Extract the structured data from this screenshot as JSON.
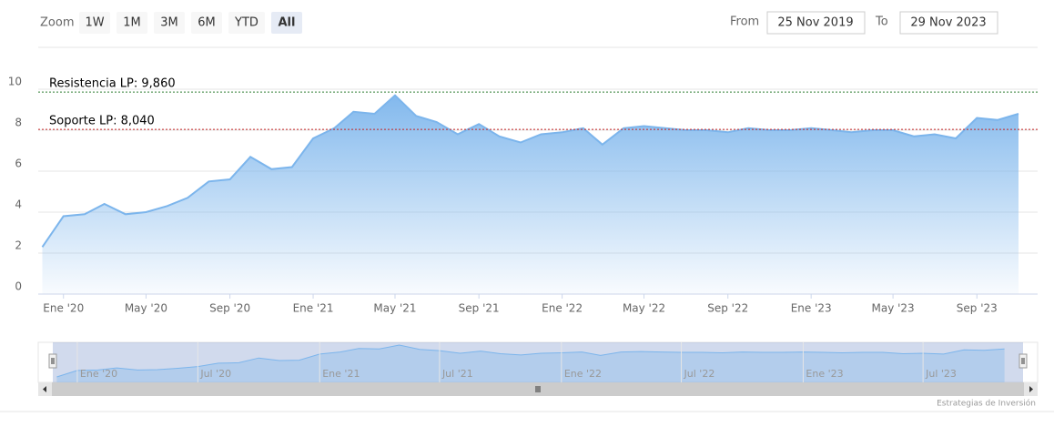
{
  "chart_data": {
    "type": "area",
    "zoom_label": "Zoom",
    "zoom_buttons": [
      "1W",
      "1M",
      "3M",
      "6M",
      "YTD",
      "All"
    ],
    "zoom_selected": 5,
    "range_from_label": "From",
    "range_from": "25 Nov 2019",
    "range_to_label": "To",
    "range_to": "29 Nov 2023",
    "x": [
      "2019-12",
      "2020-01",
      "2020-02",
      "2020-03",
      "2020-04",
      "2020-05",
      "2020-06",
      "2020-07",
      "2020-08",
      "2020-09",
      "2020-10",
      "2020-11",
      "2020-12",
      "2021-01",
      "2021-02",
      "2021-03",
      "2021-04",
      "2021-05",
      "2021-06",
      "2021-07",
      "2021-08",
      "2021-09",
      "2021-10",
      "2021-11",
      "2021-12",
      "2022-01",
      "2022-02",
      "2022-03",
      "2022-04",
      "2022-05",
      "2022-06",
      "2022-07",
      "2022-08",
      "2022-09",
      "2022-10",
      "2022-11",
      "2022-12",
      "2023-01",
      "2023-02",
      "2023-03",
      "2023-04",
      "2023-05",
      "2023-06",
      "2023-07",
      "2023-08",
      "2023-09",
      "2023-10",
      "2023-11"
    ],
    "series": [
      {
        "color": "#7cb5ec",
        "values": [
          2.3,
          3.8,
          3.9,
          4.4,
          3.9,
          4.0,
          4.3,
          4.7,
          5.5,
          5.6,
          6.7,
          6.1,
          6.2,
          7.6,
          8.1,
          8.9,
          8.8,
          9.7,
          8.7,
          8.4,
          7.8,
          8.3,
          7.7,
          7.4,
          7.8,
          7.9,
          8.1,
          7.3,
          8.1,
          8.2,
          8.1,
          8.0,
          8.0,
          7.9,
          8.1,
          8.0,
          8.0,
          8.1,
          8.0,
          7.9,
          8.0,
          8.0,
          7.7,
          7.8,
          7.6,
          8.6,
          8.5,
          8.8
        ]
      }
    ],
    "ylim": [
      0,
      12
    ],
    "yticks": [
      0,
      2,
      4,
      6,
      8,
      10
    ],
    "grid": true,
    "xticks": [
      {
        "value": "2020-01",
        "label": "Ene '20"
      },
      {
        "value": "2020-05",
        "label": "May '20"
      },
      {
        "value": "2020-09",
        "label": "Sep '20"
      },
      {
        "value": "2021-01",
        "label": "Ene '21"
      },
      {
        "value": "2021-05",
        "label": "May '21"
      },
      {
        "value": "2021-09",
        "label": "Sep '21"
      },
      {
        "value": "2022-01",
        "label": "Ene '22"
      },
      {
        "value": "2022-05",
        "label": "May '22"
      },
      {
        "value": "2022-09",
        "label": "Sep '22"
      },
      {
        "value": "2023-01",
        "label": "Ene '23"
      },
      {
        "value": "2023-05",
        "label": "May '23"
      },
      {
        "value": "2023-09",
        "label": "Sep '23"
      }
    ],
    "plot_lines": [
      {
        "label": "Resistencia LP: 9,860",
        "value": 9.86,
        "color": "#2e7d32"
      },
      {
        "label": "Soporte LP: 8,040",
        "value": 8.04,
        "color": "#c62828"
      }
    ],
    "navigator_xticks": [
      {
        "value": "2020-01",
        "label": "Ene '20"
      },
      {
        "value": "2020-07",
        "label": "Jul '20"
      },
      {
        "value": "2021-01",
        "label": "Ene '21"
      },
      {
        "value": "2021-07",
        "label": "Jul '21"
      },
      {
        "value": "2022-01",
        "label": "Ene '22"
      },
      {
        "value": "2022-07",
        "label": "Jul '22"
      },
      {
        "value": "2023-01",
        "label": "Ene '23"
      },
      {
        "value": "2023-07",
        "label": "Jul '23"
      }
    ],
    "credits": "Estrategias de Inversión"
  }
}
